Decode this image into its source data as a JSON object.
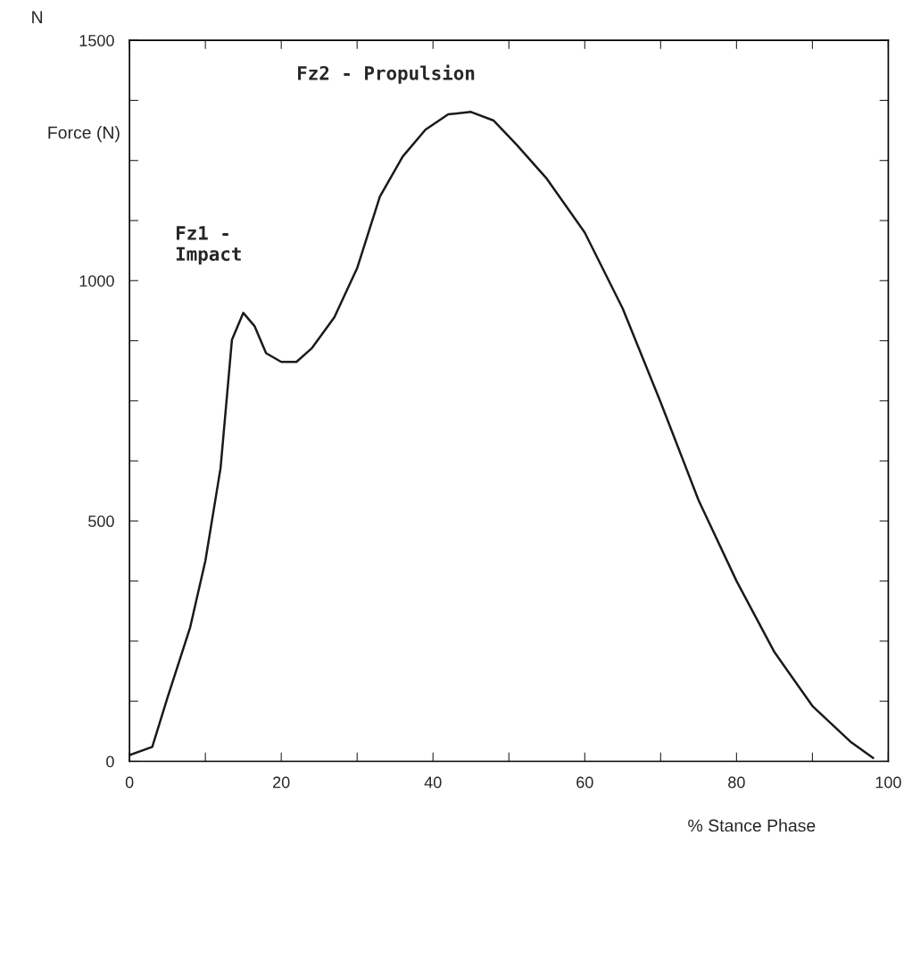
{
  "chart_data": {
    "type": "line",
    "xlabel": "% Stance Phase",
    "ylabel": "Force (N)",
    "annotations": [
      "N",
      "Fz2 - Propulsion",
      "Fz1 -\nImpact"
    ],
    "x": [
      0,
      3,
      5,
      8,
      10,
      12,
      13.5,
      15,
      16.5,
      18,
      20,
      22,
      24,
      27,
      30,
      33,
      36,
      39,
      42,
      45,
      48,
      51,
      55,
      60,
      65,
      70,
      75,
      80,
      85,
      90,
      95,
      98
    ],
    "series": [
      {
        "color": "#1a1a1a",
        "values": [
          13,
          30,
          132,
          279,
          417,
          610,
          877,
          933,
          905,
          849,
          831,
          831,
          859,
          924,
          1026,
          1175,
          1258,
          1314,
          1346,
          1351,
          1333,
          1283,
          1212,
          1100,
          942,
          747,
          543,
          375,
          227,
          115,
          41,
          7
        ]
      }
    ],
    "xlim": [
      0,
      100
    ],
    "ylim": [
      0,
      1500
    ],
    "xticks": [
      0,
      {
        "value": 10,
        "label": null
      },
      20,
      {
        "value": 30,
        "label": null
      },
      40,
      {
        "value": 50,
        "label": null
      },
      60,
      {
        "value": 70,
        "label": null
      },
      80,
      {
        "value": 90,
        "label": null
      },
      100
    ],
    "yticks": [
      0,
      {
        "value": 125,
        "label": null
      },
      {
        "value": 250,
        "label": null
      },
      {
        "value": 375,
        "label": null
      },
      500,
      {
        "value": 625,
        "label": null
      },
      {
        "value": 750,
        "label": null
      },
      {
        "value": 875,
        "label": null
      },
      1000,
      {
        "value": 1125,
        "label": null
      },
      {
        "value": 1250,
        "label": null
      },
      {
        "value": 1375,
        "label": null
      },
      1500
    ],
    "grid": false,
    "legend": false,
    "marker": "none",
    "line_style": "solid"
  }
}
